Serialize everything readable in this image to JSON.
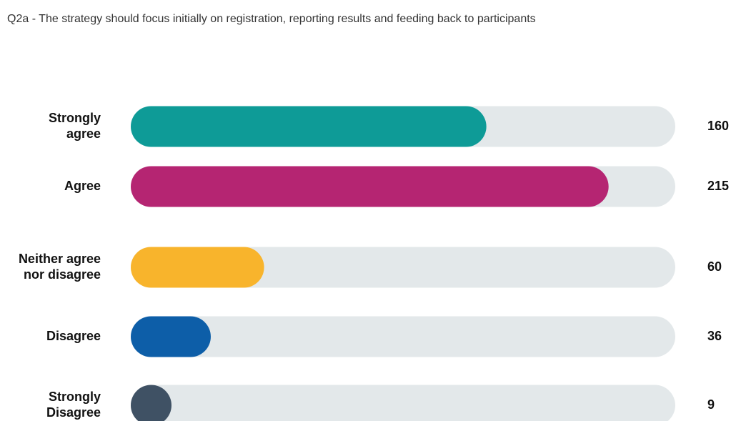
{
  "chart_data": {
    "type": "bar",
    "orientation": "horizontal",
    "title": "Q2a - The strategy should focus initially on registration, reporting results and feeding back to participants",
    "categories": [
      [
        "Strongly",
        "agree"
      ],
      [
        "Agree"
      ],
      [
        "Neither agree",
        "nor disagree"
      ],
      [
        "Disagree"
      ],
      [
        "Strongly",
        "Disagree"
      ]
    ],
    "values": [
      160,
      215,
      60,
      36,
      9
    ],
    "colors": [
      "#0e9b97",
      "#b52572",
      "#f8b42c",
      "#0d5ea8",
      "#3f5164"
    ],
    "track_color": "#e3e8ea",
    "xlim": [
      0,
      245
    ]
  }
}
